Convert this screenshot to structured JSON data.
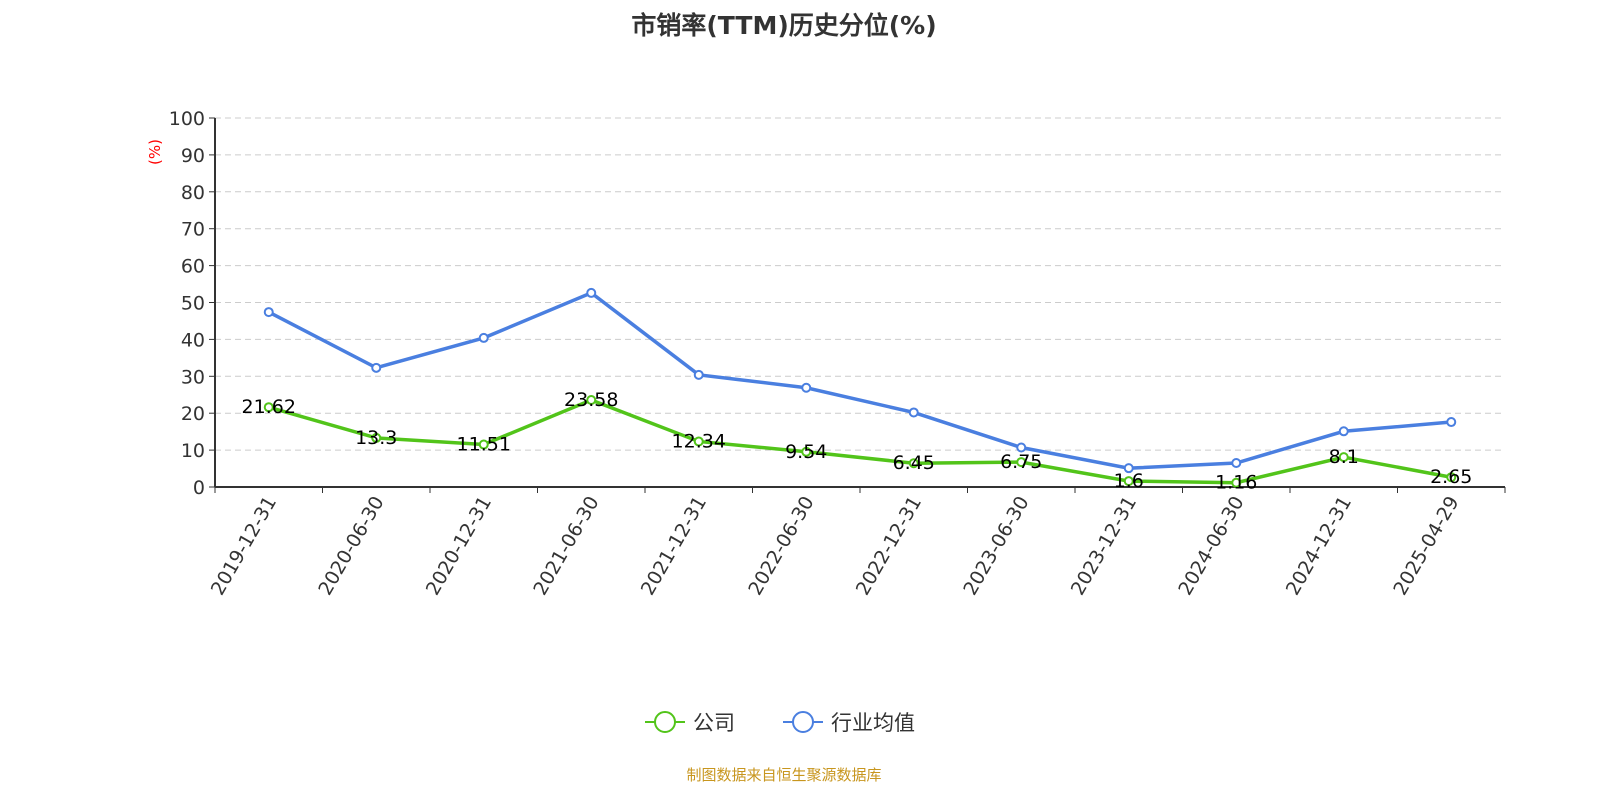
{
  "chart_data": {
    "type": "line",
    "title": "市销率(TTM)历史分位(%)",
    "ylabel": "(%)",
    "ylim": [
      0,
      100
    ],
    "yticks": [
      0,
      10,
      20,
      30,
      40,
      50,
      60,
      70,
      80,
      90,
      100
    ],
    "grid": true,
    "legend": "bottom",
    "categories": [
      "2019-12-31",
      "2020-06-30",
      "2020-12-31",
      "2021-06-30",
      "2021-12-31",
      "2022-06-30",
      "2022-12-31",
      "2023-06-30",
      "2023-12-31",
      "2024-06-30",
      "2024-12-31",
      "2025-04-29"
    ],
    "series": [
      {
        "name": "公司",
        "color": "#52c41a",
        "values": [
          21.62,
          13.3,
          11.51,
          23.58,
          12.34,
          9.54,
          6.45,
          6.75,
          1.6,
          1.16,
          8.1,
          2.65
        ],
        "labels": [
          "21.62",
          "13.3",
          "11.51",
          "23.58",
          "12.34",
          "9.54",
          "6.45",
          "6.75",
          "1.6",
          "1.16",
          "8.1",
          "2.65"
        ]
      },
      {
        "name": "行业均值",
        "color": "#4a7fe0",
        "values": [
          47.4,
          32.3,
          40.4,
          52.6,
          30.4,
          26.9,
          20.2,
          10.7,
          5.1,
          6.5,
          15.1,
          17.6
        ]
      }
    ]
  },
  "source": "制图数据来自恒生聚源数据库"
}
